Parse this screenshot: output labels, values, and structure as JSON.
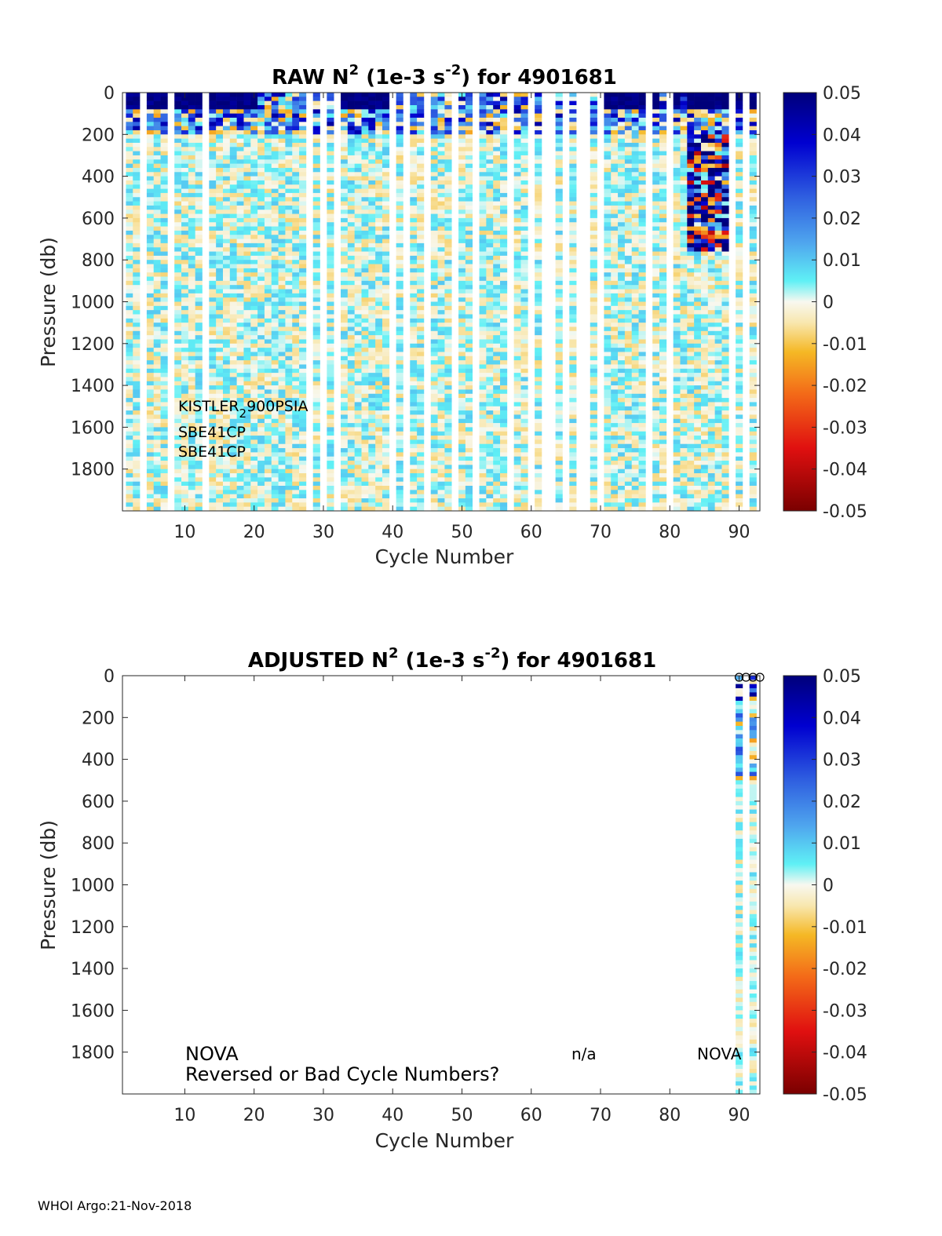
{
  "chart_data": [
    {
      "type": "heatmap",
      "name": "raw",
      "title_parts": [
        "RAW N",
        "2",
        " (1e-3 s",
        "-2",
        ") for 4901681"
      ],
      "xlabel": "Cycle Number",
      "ylabel": "Pressure (db)",
      "xlim": [
        1,
        93
      ],
      "ylim": [
        0,
        2000
      ],
      "y_reversed": true,
      "xticks": [
        10,
        20,
        30,
        40,
        50,
        60,
        70,
        80,
        90
      ],
      "yticks": [
        0,
        200,
        400,
        600,
        800,
        1000,
        1200,
        1400,
        1600,
        1800
      ],
      "cycles_with_data": [
        2,
        3,
        5,
        6,
        7,
        9,
        10,
        11,
        12,
        14,
        15,
        16,
        17,
        18,
        19,
        20,
        21,
        22,
        23,
        24,
        25,
        26,
        27,
        29,
        31,
        33,
        34,
        35,
        36,
        37,
        38,
        39,
        41,
        43,
        44,
        46,
        47,
        48,
        50,
        51,
        53,
        54,
        55,
        56,
        58,
        59,
        61,
        64,
        66,
        69,
        71,
        72,
        73,
        74,
        75,
        76,
        78,
        79,
        81,
        82,
        83,
        84,
        85,
        86,
        87,
        88,
        90,
        92
      ],
      "strong_top_cycles": [
        2,
        3,
        5,
        6,
        7,
        9,
        10,
        11,
        12,
        14,
        15,
        16,
        17,
        18,
        19,
        20,
        33,
        34,
        35,
        36,
        37,
        38,
        39,
        71,
        72,
        73,
        74,
        75,
        76,
        78,
        81,
        83,
        84,
        85,
        86,
        87,
        88,
        90,
        92
      ],
      "annotations": {
        "sensor_line1_main": "KISTLER",
        "sensor_line1_sub": "2",
        "sensor_line1_rest": "900PSIA",
        "sensor_line2": "SBE41CP",
        "sensor_line3": "SBE41CP"
      }
    },
    {
      "type": "heatmap",
      "name": "adjusted",
      "title_parts": [
        "ADJUSTED N",
        "2",
        " (1e-3 s",
        "-2",
        ") for 4901681"
      ],
      "xlabel": "Cycle Number",
      "ylabel": "Pressure (db)",
      "xlim": [
        1,
        93
      ],
      "ylim": [
        0,
        2000
      ],
      "y_reversed": true,
      "xticks": [
        10,
        20,
        30,
        40,
        50,
        60,
        70,
        80,
        90
      ],
      "yticks": [
        0,
        200,
        400,
        600,
        800,
        1000,
        1200,
        1400,
        1600,
        1800
      ],
      "cycles_with_data": [
        90,
        92
      ],
      "circle_markers": [
        90,
        91,
        92,
        93
      ],
      "annotations": {
        "left_label": "NOVA",
        "left_note": "Reversed or Bad Cycle Numbers?",
        "mid_label": "n/a",
        "right_label": "NOVA"
      }
    }
  ],
  "colorbar": {
    "range": [
      -0.05,
      0.05
    ],
    "tick_labels": [
      "0.05",
      "0.04",
      "0.03",
      "0.02",
      "0.01",
      "0",
      "-0.01",
      "-0.02",
      "-0.03",
      "-0.04",
      "-0.05"
    ]
  },
  "footer": "WHOI Argo:21-Nov-2018"
}
